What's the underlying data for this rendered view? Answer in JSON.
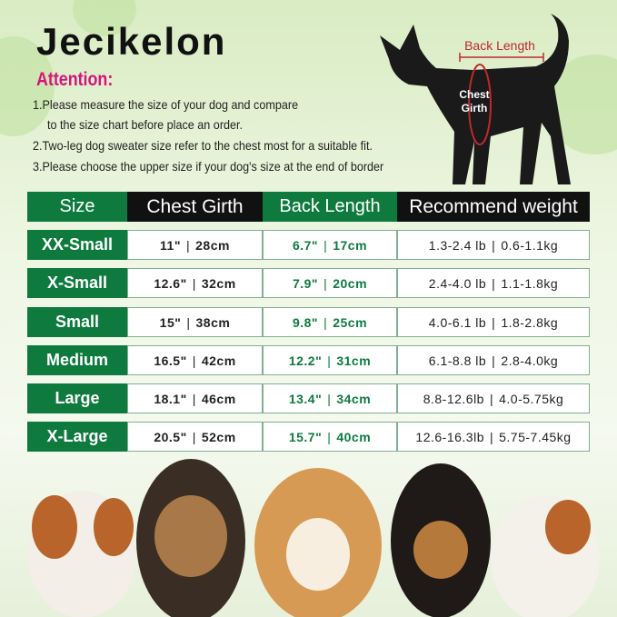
{
  "brand": "Jecikelon",
  "attention": "Attention:",
  "notes": [
    "1.Please measure the size of your dog and compare",
    "to the size chart before place an order.",
    "2.Two-leg dog sweater size refer to the chest most for a suitable fit.",
    "3.Please choose the upper size if your dog's size at the end of border"
  ],
  "diagram": {
    "back_length": "Back Length",
    "chest_girth_1": "Chest",
    "chest_girth_2": "Girth"
  },
  "colors": {
    "green": "#0e7a3e",
    "black": "#111111",
    "pink": "#d6157a",
    "red": "#c0282d"
  },
  "table": {
    "headers": [
      "Size",
      "Chest Girth",
      "Back Length",
      "Recommend weight"
    ],
    "rows": [
      {
        "size": "XX-Small",
        "chest_in": "11\"",
        "chest_cm": "28cm",
        "back_in": "6.7\"",
        "back_cm": "17cm",
        "w_lb": "1.3-2.4 lb",
        "w_kg": "0.6-1.1kg"
      },
      {
        "size": "X-Small",
        "chest_in": "12.6\"",
        "chest_cm": "32cm",
        "back_in": "7.9\"",
        "back_cm": "20cm",
        "w_lb": "2.4-4.0 lb",
        "w_kg": "1.1-1.8kg"
      },
      {
        "size": "Small",
        "chest_in": "15\"",
        "chest_cm": "38cm",
        "back_in": "9.8\"",
        "back_cm": "25cm",
        "w_lb": "4.0-6.1 lb",
        "w_kg": "1.8-2.8kg"
      },
      {
        "size": "Medium",
        "chest_in": "16.5\"",
        "chest_cm": "42cm",
        "back_in": "12.2\"",
        "back_cm": "31cm",
        "w_lb": "6.1-8.8 lb",
        "w_kg": "2.8-4.0kg"
      },
      {
        "size": "Large",
        "chest_in": "18.1\"",
        "chest_cm": "46cm",
        "back_in": "13.4\"",
        "back_cm": "34cm",
        "w_lb": "8.8-12.6lb",
        "w_kg": "4.0-5.75kg"
      },
      {
        "size": "X-Large",
        "chest_in": "20.5\"",
        "chest_cm": "52cm",
        "back_in": "15.7\"",
        "back_cm": "40cm",
        "w_lb": "12.6-16.3lb",
        "w_kg": "5.75-7.45kg"
      }
    ]
  }
}
